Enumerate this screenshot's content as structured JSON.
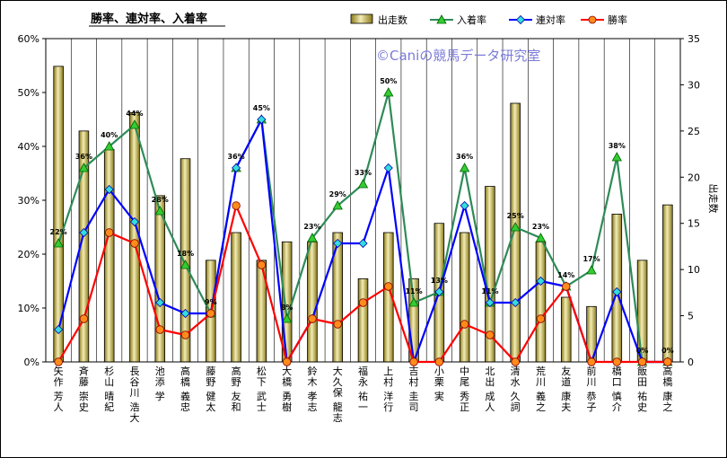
{
  "chart_data": {
    "type": "bar+line",
    "title": "勝率、連対率、入着率",
    "watermark": "©Caniの競馬データ研究室",
    "y2label": "出走数",
    "ylim": [
      0,
      0.6
    ],
    "y2lim": [
      0,
      35
    ],
    "yticks": [
      "0%",
      "10%",
      "20%",
      "30%",
      "40%",
      "50%",
      "60%"
    ],
    "y2ticks": [
      "0",
      "5",
      "10",
      "15",
      "20",
      "25",
      "30",
      "35"
    ],
    "legend": [
      "出走数",
      "入着率",
      "連対率",
      "勝率"
    ],
    "legend_position": "top",
    "grid": "vertical",
    "categories": [
      "矢作 芳人",
      "斉藤 崇史",
      "杉山 晴紀",
      "長谷川 浩大",
      "池添 学",
      "高橋 義忠",
      "藤野 健太",
      "高野 友和",
      "松下 武士",
      "大橋 勇樹",
      "鈴木 孝志",
      "大久保 龍志",
      "福永 祐一",
      "上村 洋行",
      "吉村 圭司",
      "小栗 実",
      "中尾 秀正",
      "北出 成人",
      "清水 久詞",
      "荒川 義之",
      "友道 康夫",
      "前川 恭子",
      "橋口 慎介",
      "飯田 祐史",
      "高橋 康之"
    ],
    "starts": [
      32,
      25,
      23,
      27,
      18,
      22,
      11,
      14,
      11,
      13,
      13,
      14,
      9,
      14,
      9,
      15,
      14,
      19,
      28,
      13,
      7,
      6,
      16,
      11,
      17
    ],
    "show_rate": [
      0.22,
      0.36,
      0.4,
      0.44,
      0.28,
      0.18,
      0.09,
      0.36,
      0.45,
      0.08,
      0.23,
      0.29,
      0.33,
      0.5,
      0.11,
      0.13,
      0.36,
      0.11,
      0.25,
      0.23,
      0.14,
      0.17,
      0.38,
      0.0,
      0.0
    ],
    "rentai_rate": [
      0.06,
      0.24,
      0.32,
      0.26,
      0.11,
      0.09,
      0.09,
      0.36,
      0.45,
      0.0,
      0.08,
      0.22,
      0.22,
      0.36,
      0.0,
      0.13,
      0.29,
      0.11,
      0.11,
      0.15,
      0.14,
      0.0,
      0.13,
      0.0,
      0.0
    ],
    "win_rate": [
      0.0,
      0.08,
      0.24,
      0.22,
      0.06,
      0.05,
      0.09,
      0.29,
      0.18,
      0.0,
      0.08,
      0.07,
      0.11,
      0.14,
      0.0,
      0.0,
      0.07,
      0.05,
      0.0,
      0.08,
      0.14,
      0.0,
      0.0,
      0.0,
      0.0
    ],
    "show_labels": [
      "22%",
      "36%",
      "40%",
      "44%",
      "28%",
      "18%",
      "9%",
      "36%",
      "45%",
      "8%",
      "23%",
      "29%",
      "33%",
      "50%",
      "11%",
      "13%",
      "36%",
      "11%",
      "25%",
      "23%",
      "14%",
      "17%",
      "38%",
      "0%",
      "0%"
    ],
    "colors": {
      "bar_fill": "#e6e0a0",
      "bar_stroke": "#000000",
      "show_line": "#2e8b57",
      "show_marker": "#33cc33",
      "rentai_line": "#0000ff",
      "rentai_marker": "#33dddd",
      "win_line": "#ff0000",
      "win_marker": "#ff8c1a"
    }
  }
}
